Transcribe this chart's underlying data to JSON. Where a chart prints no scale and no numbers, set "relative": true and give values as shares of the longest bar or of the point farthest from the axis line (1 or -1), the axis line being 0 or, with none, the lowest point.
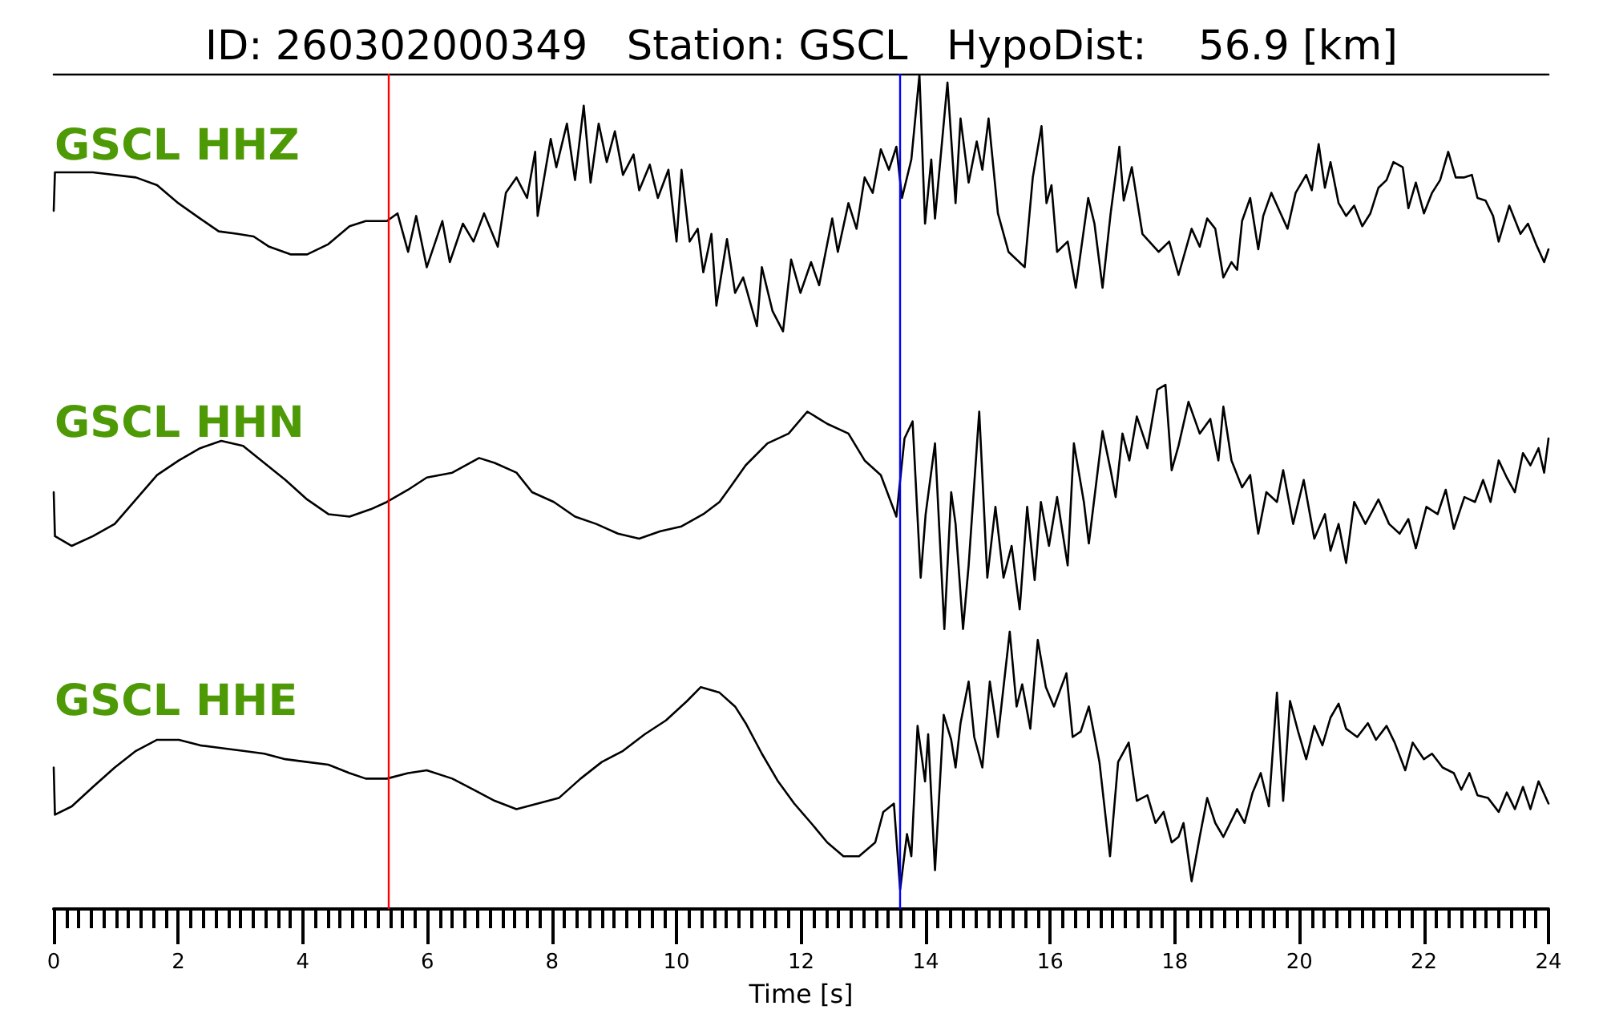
{
  "chart_data": [
    {
      "type": "line",
      "relative": true,
      "title": "ID: 260302000349   Station: GSCL   HypoDist:    56.9 [km]",
      "xlim": [
        0,
        24
      ],
      "tick_labels": false,
      "ref_lines": [
        {
          "axis": "x",
          "value": 5.36,
          "color": "#ff0000"
        },
        {
          "axis": "x",
          "value": 13.58,
          "color": "#0000ff"
        }
      ],
      "series": [
        {
          "name": "GSCL HHZ",
          "color": "#000000",
          "x": [
            0,
            0.02,
            0.63,
            1.32,
            1.66,
            2.0,
            2.35,
            2.65,
            2.95,
            3.21,
            3.46,
            3.81,
            4.07,
            4.41,
            4.75,
            5.01,
            5.35,
            5.52,
            5.69,
            5.82,
            5.99,
            6.24,
            6.36,
            6.57,
            6.74,
            6.91,
            7.13,
            7.26,
            7.43,
            7.6,
            7.73,
            7.77,
            7.98,
            8.07,
            8.24,
            8.37,
            8.51,
            8.62,
            8.75,
            8.88,
            9.01,
            9.14,
            9.31,
            9.4,
            9.57,
            9.7,
            9.87,
            10.0,
            10.08,
            10.21,
            10.34,
            10.43,
            10.56,
            10.64,
            10.81,
            10.94,
            11.07,
            11.29,
            11.37,
            11.54,
            11.71,
            11.84,
            11.99,
            12.16,
            12.29,
            12.5,
            12.59,
            12.76,
            12.89,
            13.02,
            13.15,
            13.28,
            13.41,
            13.53,
            13.62,
            13.77,
            13.9,
            13.99,
            14.09,
            14.15,
            14.35,
            14.48,
            14.56,
            14.69,
            14.82,
            14.91,
            15.01,
            15.16,
            15.33,
            15.59,
            15.72,
            15.86,
            15.94,
            16.02,
            16.11,
            16.28,
            16.41,
            16.61,
            16.71,
            16.84,
            16.97,
            17.11,
            17.18,
            17.31,
            17.48,
            17.74,
            17.91,
            18.06,
            18.27,
            18.4,
            18.52,
            18.65,
            18.78,
            18.91,
            19.0,
            19.08,
            19.21,
            19.34,
            19.42,
            19.55,
            19.68,
            19.81,
            19.94,
            20.11,
            20.2,
            20.31,
            20.41,
            20.5,
            20.63,
            20.75,
            20.88,
            21.01,
            21.14,
            21.27,
            21.4,
            21.51,
            21.66,
            21.75,
            21.87,
            22.0,
            22.13,
            22.26,
            22.39,
            22.51,
            22.64,
            22.77,
            22.86,
            22.99,
            23.11,
            23.2,
            23.37,
            23.55,
            23.67,
            23.8,
            23.93,
            24.0
          ],
          "values": [
            0.47,
            0.62,
            0.62,
            0.6,
            0.57,
            0.5,
            0.44,
            0.39,
            0.38,
            0.37,
            0.33,
            0.3,
            0.3,
            0.34,
            0.41,
            0.43,
            0.43,
            0.46,
            0.31,
            0.45,
            0.25,
            0.43,
            0.27,
            0.42,
            0.35,
            0.46,
            0.33,
            0.54,
            0.6,
            0.52,
            0.7,
            0.45,
            0.75,
            0.64,
            0.81,
            0.59,
            0.88,
            0.58,
            0.81,
            0.66,
            0.78,
            0.61,
            0.69,
            0.55,
            0.65,
            0.52,
            0.63,
            0.35,
            0.63,
            0.35,
            0.4,
            0.23,
            0.38,
            0.1,
            0.36,
            0.15,
            0.21,
            0.02,
            0.25,
            0.08,
            0,
            0.28,
            0.15,
            0.27,
            0.18,
            0.44,
            0.31,
            0.5,
            0.4,
            0.6,
            0.54,
            0.71,
            0.63,
            0.72,
            0.52,
            0.67,
            1,
            0.42,
            0.67,
            0.44,
            0.97,
            0.5,
            0.83,
            0.58,
            0.74,
            0.63,
            0.83,
            0.46,
            0.31,
            0.25,
            0.6,
            0.8,
            0.5,
            0.57,
            0.31,
            0.35,
            0.17,
            0.52,
            0.42,
            0.17,
            0.46,
            0.72,
            0.51,
            0.64,
            0.38,
            0.31,
            0.35,
            0.22,
            0.4,
            0.33,
            0.44,
            0.4,
            0.21,
            0.27,
            0.24,
            0.43,
            0.52,
            0.32,
            0.45,
            0.54,
            0.47,
            0.4,
            0.54,
            0.61,
            0.55,
            0.73,
            0.56,
            0.66,
            0.5,
            0.45,
            0.49,
            0.41,
            0.46,
            0.56,
            0.59,
            0.66,
            0.64,
            0.48,
            0.58,
            0.46,
            0.54,
            0.59,
            0.7,
            0.6,
            0.6,
            0.61,
            0.52,
            0.51,
            0.45,
            0.35,
            0.49,
            0.38,
            0.42,
            0.34,
            0.27,
            0.32
          ]
        }
      ]
    },
    {
      "type": "line",
      "relative": true,
      "xlim": [
        0,
        24
      ],
      "tick_labels": false,
      "ref_lines": [
        {
          "axis": "x",
          "value": 5.36,
          "color": "#ff0000"
        },
        {
          "axis": "x",
          "value": 13.58,
          "color": "#0000ff"
        }
      ],
      "series": [
        {
          "name": "GSCL HHN",
          "color": "#000000",
          "x": [
            0,
            0.02,
            0.29,
            0.63,
            0.98,
            1.32,
            1.66,
            2.01,
            2.35,
            2.69,
            3.04,
            3.38,
            3.72,
            4.07,
            4.41,
            4.75,
            5.09,
            5.35,
            5.69,
            5.99,
            6.4,
            6.83,
            7.08,
            7.43,
            7.68,
            8.03,
            8.37,
            8.71,
            9.06,
            9.4,
            9.74,
            10.08,
            10.43,
            10.69,
            10.86,
            11.11,
            11.46,
            11.8,
            12.1,
            12.42,
            12.76,
            13.02,
            13.28,
            13.53,
            13.66,
            13.79,
            13.92,
            14.0,
            14.15,
            14.3,
            14.41,
            14.48,
            14.6,
            14.69,
            14.86,
            14.99,
            15.12,
            15.25,
            15.38,
            15.51,
            15.63,
            15.75,
            15.85,
            15.98,
            16.11,
            16.28,
            16.38,
            16.54,
            16.62,
            16.84,
            16.97,
            17.05,
            17.16,
            17.27,
            17.39,
            17.56,
            17.72,
            17.85,
            17.95,
            18.06,
            18.22,
            18.4,
            18.57,
            18.7,
            18.78,
            18.91,
            19.08,
            19.21,
            19.34,
            19.47,
            19.64,
            19.74,
            19.9,
            20.07,
            20.24,
            20.41,
            20.5,
            20.63,
            20.75,
            20.88,
            21.06,
            21.27,
            21.44,
            21.61,
            21.75,
            21.87,
            22.04,
            22.22,
            22.35,
            22.48,
            22.65,
            22.82,
            22.95,
            23.07,
            23.2,
            23.33,
            23.46,
            23.59,
            23.71,
            23.84,
            23.93,
            24.0
          ],
          "values": [
            0.56,
            0.38,
            0.34,
            0.38,
            0.43,
            0.53,
            0.63,
            0.69,
            0.74,
            0.77,
            0.75,
            0.68,
            0.61,
            0.53,
            0.47,
            0.46,
            0.49,
            0.52,
            0.57,
            0.62,
            0.64,
            0.7,
            0.68,
            0.64,
            0.56,
            0.52,
            0.46,
            0.43,
            0.39,
            0.37,
            0.4,
            0.42,
            0.47,
            0.52,
            0.58,
            0.67,
            0.76,
            0.8,
            0.89,
            0.84,
            0.8,
            0.69,
            0.63,
            0.46,
            0.78,
            0.85,
            0.21,
            0.47,
            0.76,
            0,
            0.56,
            0.43,
            0,
            0.26,
            0.89,
            0.21,
            0.5,
            0.21,
            0.34,
            0.08,
            0.5,
            0.2,
            0.52,
            0.34,
            0.54,
            0.26,
            0.76,
            0.52,
            0.35,
            0.81,
            0.65,
            0.54,
            0.8,
            0.69,
            0.87,
            0.74,
            0.98,
            1,
            0.65,
            0.75,
            0.93,
            0.8,
            0.86,
            0.69,
            0.91,
            0.69,
            0.58,
            0.63,
            0.39,
            0.56,
            0.52,
            0.65,
            0.43,
            0.61,
            0.37,
            0.47,
            0.32,
            0.43,
            0.27,
            0.52,
            0.43,
            0.53,
            0.43,
            0.39,
            0.45,
            0.33,
            0.5,
            0.47,
            0.57,
            0.41,
            0.54,
            0.52,
            0.61,
            0.52,
            0.69,
            0.62,
            0.56,
            0.72,
            0.67,
            0.74,
            0.64,
            0.78
          ]
        }
      ]
    },
    {
      "type": "line",
      "relative": true,
      "xlim": [
        0,
        24
      ],
      "tick_labels": "x",
      "xlabel": "Time [s]",
      "xticks": [
        0,
        {
          "value": 0.2,
          "label": null
        },
        {
          "value": 0.4,
          "label": null
        },
        {
          "value": 0.6,
          "label": null
        },
        {
          "value": 0.8,
          "label": null
        },
        {
          "value": 1,
          "label": null
        },
        {
          "value": 1.2,
          "label": null
        },
        {
          "value": 1.4,
          "label": null
        },
        {
          "value": 1.6,
          "label": null
        },
        {
          "value": 1.8,
          "label": null
        },
        2,
        {
          "value": 2.2,
          "label": null
        },
        {
          "value": 2.4,
          "label": null
        },
        {
          "value": 2.6,
          "label": null
        },
        {
          "value": 2.8,
          "label": null
        },
        {
          "value": 3,
          "label": null
        },
        {
          "value": 3.2,
          "label": null
        },
        {
          "value": 3.4,
          "label": null
        },
        {
          "value": 3.6,
          "label": null
        },
        {
          "value": 3.8,
          "label": null
        },
        4,
        {
          "value": 4.2,
          "label": null
        },
        {
          "value": 4.4,
          "label": null
        },
        {
          "value": 4.6,
          "label": null
        },
        {
          "value": 4.8,
          "label": null
        },
        {
          "value": 5,
          "label": null
        },
        {
          "value": 5.2,
          "label": null
        },
        {
          "value": 5.4,
          "label": null
        },
        {
          "value": 5.6,
          "label": null
        },
        {
          "value": 5.8,
          "label": null
        },
        6,
        {
          "value": 6.2,
          "label": null
        },
        {
          "value": 6.4,
          "label": null
        },
        {
          "value": 6.6,
          "label": null
        },
        {
          "value": 6.8,
          "label": null
        },
        {
          "value": 7,
          "label": null
        },
        {
          "value": 7.2,
          "label": null
        },
        {
          "value": 7.4,
          "label": null
        },
        {
          "value": 7.6,
          "label": null
        },
        {
          "value": 7.8,
          "label": null
        },
        8,
        {
          "value": 8.2,
          "label": null
        },
        {
          "value": 8.4,
          "label": null
        },
        {
          "value": 8.6,
          "label": null
        },
        {
          "value": 8.8,
          "label": null
        },
        {
          "value": 9,
          "label": null
        },
        {
          "value": 9.2,
          "label": null
        },
        {
          "value": 9.4,
          "label": null
        },
        {
          "value": 9.6,
          "label": null
        },
        {
          "value": 9.8,
          "label": null
        },
        10,
        {
          "value": 10.2,
          "label": null
        },
        {
          "value": 10.4,
          "label": null
        },
        {
          "value": 10.6,
          "label": null
        },
        {
          "value": 10.8,
          "label": null
        },
        {
          "value": 11,
          "label": null
        },
        {
          "value": 11.2,
          "label": null
        },
        {
          "value": 11.4,
          "label": null
        },
        {
          "value": 11.6,
          "label": null
        },
        {
          "value": 11.8,
          "label": null
        },
        12,
        {
          "value": 12.2,
          "label": null
        },
        {
          "value": 12.4,
          "label": null
        },
        {
          "value": 12.6,
          "label": null
        },
        {
          "value": 12.8,
          "label": null
        },
        {
          "value": 13,
          "label": null
        },
        {
          "value": 13.2,
          "label": null
        },
        {
          "value": 13.4,
          "label": null
        },
        {
          "value": 13.6,
          "label": null
        },
        {
          "value": 13.8,
          "label": null
        },
        14,
        {
          "value": 14.2,
          "label": null
        },
        {
          "value": 14.4,
          "label": null
        },
        {
          "value": 14.6,
          "label": null
        },
        {
          "value": 14.8,
          "label": null
        },
        {
          "value": 15,
          "label": null
        },
        {
          "value": 15.2,
          "label": null
        },
        {
          "value": 15.4,
          "label": null
        },
        {
          "value": 15.6,
          "label": null
        },
        {
          "value": 15.8,
          "label": null
        },
        16,
        {
          "value": 16.2,
          "label": null
        },
        {
          "value": 16.4,
          "label": null
        },
        {
          "value": 16.6,
          "label": null
        },
        {
          "value": 16.8,
          "label": null
        },
        {
          "value": 17,
          "label": null
        },
        {
          "value": 17.2,
          "label": null
        },
        {
          "value": 17.4,
          "label": null
        },
        {
          "value": 17.6,
          "label": null
        },
        {
          "value": 17.8,
          "label": null
        },
        18,
        {
          "value": 18.2,
          "label": null
        },
        {
          "value": 18.4,
          "label": null
        },
        {
          "value": 18.6,
          "label": null
        },
        {
          "value": 18.8,
          "label": null
        },
        {
          "value": 19,
          "label": null
        },
        {
          "value": 19.2,
          "label": null
        },
        {
          "value": 19.4,
          "label": null
        },
        {
          "value": 19.6,
          "label": null
        },
        {
          "value": 19.8,
          "label": null
        },
        20,
        {
          "value": 20.2,
          "label": null
        },
        {
          "value": 20.4,
          "label": null
        },
        {
          "value": 20.6,
          "label": null
        },
        {
          "value": 20.8,
          "label": null
        },
        {
          "value": 21,
          "label": null
        },
        {
          "value": 21.2,
          "label": null
        },
        {
          "value": 21.4,
          "label": null
        },
        {
          "value": 21.6,
          "label": null
        },
        {
          "value": 21.8,
          "label": null
        },
        22,
        {
          "value": 22.2,
          "label": null
        },
        {
          "value": 22.4,
          "label": null
        },
        {
          "value": 22.6,
          "label": null
        },
        {
          "value": 22.8,
          "label": null
        },
        {
          "value": 23,
          "label": null
        },
        {
          "value": 23.2,
          "label": null
        },
        {
          "value": 23.4,
          "label": null
        },
        {
          "value": 23.6,
          "label": null
        },
        {
          "value": 23.8,
          "label": null
        },
        24
      ],
      "ref_lines": [
        {
          "axis": "x",
          "value": 5.36,
          "color": "#ff0000"
        },
        {
          "axis": "x",
          "value": 13.58,
          "color": "#0000ff"
        }
      ],
      "series": [
        {
          "name": "GSCL HHE",
          "color": "#000000",
          "x": [
            0,
            0.02,
            0.29,
            0.63,
            0.98,
            1.32,
            1.66,
            2.01,
            2.35,
            2.69,
            3.04,
            3.38,
            3.72,
            4.07,
            4.41,
            4.75,
            5.01,
            5.35,
            5.69,
            5.99,
            6.4,
            6.74,
            7.08,
            7.43,
            7.77,
            8.11,
            8.46,
            8.8,
            9.14,
            9.49,
            9.83,
            10.17,
            10.39,
            10.69,
            10.94,
            11.11,
            11.37,
            11.63,
            11.89,
            12.16,
            12.42,
            12.68,
            12.93,
            13.19,
            13.32,
            13.49,
            13.59,
            13.7,
            13.77,
            13.87,
            13.99,
            14.04,
            14.15,
            14.29,
            14.41,
            14.48,
            14.56,
            14.69,
            14.78,
            14.91,
            15.03,
            15.16,
            15.35,
            15.46,
            15.55,
            15.68,
            15.8,
            15.93,
            16.06,
            16.26,
            16.36,
            16.49,
            16.62,
            16.79,
            16.96,
            17.09,
            17.26,
            17.39,
            17.56,
            17.69,
            17.82,
            17.95,
            18.06,
            18.14,
            18.27,
            18.4,
            18.52,
            18.65,
            18.78,
            19.0,
            19.12,
            19.25,
            19.38,
            19.51,
            19.64,
            19.74,
            19.85,
            19.98,
            20.11,
            20.24,
            20.37,
            20.5,
            20.63,
            20.75,
            20.93,
            21.1,
            21.23,
            21.4,
            21.53,
            21.7,
            21.82,
            22.0,
            22.13,
            22.3,
            22.48,
            22.6,
            22.73,
            22.86,
            23.03,
            23.2,
            23.33,
            23.46,
            23.59,
            23.71,
            23.84,
            24.0
          ],
          "values": [
            0.51,
            0.34,
            0.37,
            0.44,
            0.51,
            0.57,
            0.61,
            0.61,
            0.59,
            0.58,
            0.57,
            0.56,
            0.54,
            0.53,
            0.52,
            0.49,
            0.47,
            0.47,
            0.49,
            0.5,
            0.47,
            0.43,
            0.39,
            0.36,
            0.38,
            0.4,
            0.47,
            0.53,
            0.57,
            0.63,
            0.68,
            0.75,
            0.8,
            0.78,
            0.73,
            0.67,
            0.56,
            0.46,
            0.38,
            0.31,
            0.24,
            0.19,
            0.19,
            0.24,
            0.35,
            0.38,
            0.07,
            0.27,
            0.19,
            0.66,
            0.46,
            0.63,
            0.14,
            0.7,
            0.61,
            0.51,
            0.67,
            0.82,
            0.62,
            0.51,
            0.82,
            0.62,
            1,
            0.73,
            0.81,
            0.65,
            0.97,
            0.8,
            0.73,
            0.85,
            0.62,
            0.64,
            0.73,
            0.53,
            0.19,
            0.53,
            0.6,
            0.39,
            0.41,
            0.31,
            0.35,
            0.24,
            0.26,
            0.31,
            0.1,
            0.26,
            0.4,
            0.31,
            0.26,
            0.36,
            0.31,
            0.42,
            0.49,
            0.37,
            0.78,
            0.39,
            0.75,
            0.64,
            0.54,
            0.66,
            0.59,
            0.69,
            0.74,
            0.65,
            0.62,
            0.67,
            0.61,
            0.66,
            0.6,
            0.5,
            0.6,
            0.54,
            0.56,
            0.51,
            0.49,
            0.43,
            0.49,
            0.41,
            0.4,
            0.35,
            0.42,
            0.36,
            0.44,
            0.36,
            0.46,
            0.38
          ]
        }
      ]
    }
  ]
}
